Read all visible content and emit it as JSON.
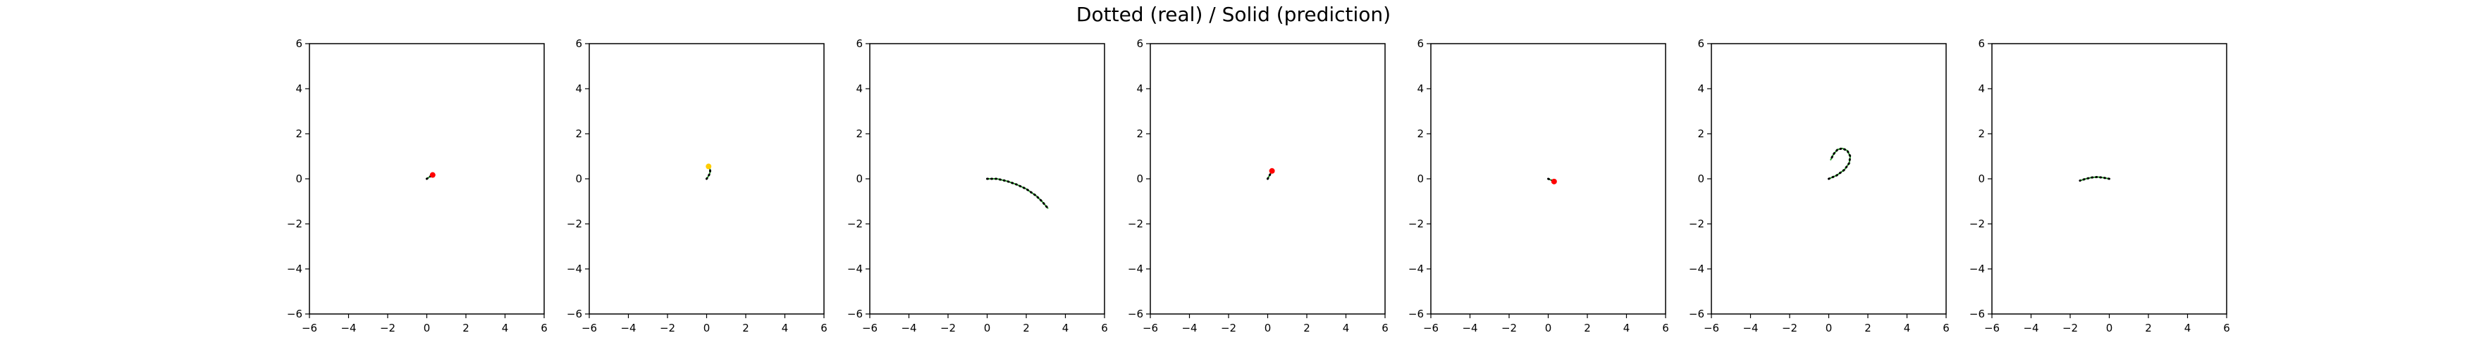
{
  "figure": {
    "title": "Dotted (real) / Solid (prediction)"
  },
  "chart_data": [
    {
      "type": "line",
      "xlim": [
        -6,
        6
      ],
      "ylim": [
        -6,
        6
      ],
      "xticks": [
        -6,
        -4,
        -2,
        0,
        2,
        4,
        6
      ],
      "yticks": [
        -6,
        -4,
        -2,
        0,
        2,
        4,
        6
      ],
      "grid": false,
      "series": [
        {
          "style": "dotted",
          "color": "#000000",
          "x": [
            0.0,
            0.05,
            0.1,
            0.15,
            0.2,
            0.25,
            0.3
          ],
          "y": [
            0.0,
            0.03,
            0.06,
            0.09,
            0.12,
            0.15,
            0.17
          ]
        },
        {
          "style": "solid",
          "color": "#2ca02c",
          "x": [
            0.0,
            0.05,
            0.1,
            0.15,
            0.2,
            0.25,
            0.3
          ],
          "y": [
            0.0,
            0.03,
            0.06,
            0.09,
            0.12,
            0.15,
            0.17
          ]
        }
      ],
      "end_marker": {
        "x": 0.3,
        "y": 0.17,
        "color": "#ff0000"
      }
    },
    {
      "type": "line",
      "xlim": [
        -6,
        6
      ],
      "ylim": [
        -6,
        6
      ],
      "xticks": [
        -6,
        -4,
        -2,
        0,
        2,
        4,
        6
      ],
      "yticks": [
        -6,
        -4,
        -2,
        0,
        2,
        4,
        6
      ],
      "grid": false,
      "series": [
        {
          "style": "dotted",
          "color": "#000000",
          "x": [
            0.0,
            0.08,
            0.14,
            0.18,
            0.18,
            0.14,
            0.1
          ],
          "y": [
            0.0,
            0.1,
            0.2,
            0.3,
            0.4,
            0.5,
            0.55
          ]
        },
        {
          "style": "solid",
          "color": "#2ca02c",
          "x": [
            0.0,
            0.08,
            0.14,
            0.18,
            0.18,
            0.14,
            0.1
          ],
          "y": [
            0.0,
            0.1,
            0.2,
            0.3,
            0.4,
            0.5,
            0.55
          ]
        }
      ],
      "end_marker": {
        "x": 0.1,
        "y": 0.55,
        "color": "#ffcc00"
      }
    },
    {
      "type": "line",
      "xlim": [
        -6,
        6
      ],
      "ylim": [
        -6,
        6
      ],
      "xticks": [
        -6,
        -4,
        -2,
        0,
        2,
        4,
        6
      ],
      "yticks": [
        -6,
        -4,
        -2,
        0,
        2,
        4,
        6
      ],
      "grid": false,
      "series": [
        {
          "style": "dotted",
          "color": "#000000",
          "x": [
            0.0,
            0.5,
            1.0,
            1.5,
            2.0,
            2.5,
            2.8,
            3.1
          ],
          "y": [
            0.0,
            0.0,
            -0.1,
            -0.25,
            -0.45,
            -0.75,
            -1.0,
            -1.3
          ]
        },
        {
          "style": "solid",
          "color": "#2ca02c",
          "x": [
            0.0,
            0.5,
            1.0,
            1.5,
            2.0,
            2.5,
            2.8,
            3.1
          ],
          "y": [
            0.0,
            0.0,
            -0.1,
            -0.25,
            -0.45,
            -0.75,
            -1.0,
            -1.3
          ]
        }
      ],
      "end_marker": null
    },
    {
      "type": "line",
      "xlim": [
        -6,
        6
      ],
      "ylim": [
        -6,
        6
      ],
      "xticks": [
        -6,
        -4,
        -2,
        0,
        2,
        4,
        6
      ],
      "yticks": [
        -6,
        -4,
        -2,
        0,
        2,
        4,
        6
      ],
      "grid": false,
      "series": [
        {
          "style": "dotted",
          "color": "#000000",
          "x": [
            0.0,
            0.05,
            0.1,
            0.15,
            0.2,
            0.22
          ],
          "y": [
            0.0,
            0.08,
            0.16,
            0.24,
            0.3,
            0.35
          ]
        },
        {
          "style": "solid",
          "color": "#2ca02c",
          "x": [
            0.0,
            0.05,
            0.1,
            0.15,
            0.2,
            0.22
          ],
          "y": [
            0.0,
            0.08,
            0.16,
            0.24,
            0.3,
            0.35
          ]
        }
      ],
      "end_marker": {
        "x": 0.22,
        "y": 0.35,
        "color": "#ff0000"
      }
    },
    {
      "type": "line",
      "xlim": [
        -6,
        6
      ],
      "ylim": [
        -6,
        6
      ],
      "xticks": [
        -6,
        -4,
        -2,
        0,
        2,
        4,
        6
      ],
      "yticks": [
        -6,
        -4,
        -2,
        0,
        2,
        4,
        6
      ],
      "grid": false,
      "series": [
        {
          "style": "dotted",
          "color": "#000000",
          "x": [
            0.0,
            0.08,
            0.16,
            0.24,
            0.3
          ],
          "y": [
            0.0,
            -0.03,
            -0.06,
            -0.09,
            -0.12
          ]
        },
        {
          "style": "solid",
          "color": "#2ca02c",
          "x": [
            0.0,
            0.08,
            0.16,
            0.24,
            0.3
          ],
          "y": [
            0.0,
            -0.03,
            -0.06,
            -0.09,
            -0.12
          ]
        }
      ],
      "end_marker": {
        "x": 0.3,
        "y": -0.12,
        "color": "#ff0000"
      }
    },
    {
      "type": "line",
      "xlim": [
        -6,
        6
      ],
      "ylim": [
        -6,
        6
      ],
      "xticks": [
        -6,
        -4,
        -2,
        0,
        2,
        4,
        6
      ],
      "yticks": [
        -6,
        -4,
        -2,
        0,
        2,
        4,
        6
      ],
      "grid": false,
      "series": [
        {
          "style": "dotted",
          "color": "#000000",
          "x": [
            0.0,
            0.4,
            0.8,
            1.05,
            1.1,
            0.95,
            0.7,
            0.45,
            0.25,
            0.1
          ],
          "y": [
            0.0,
            0.15,
            0.4,
            0.7,
            1.0,
            1.25,
            1.35,
            1.3,
            1.1,
            0.85
          ]
        },
        {
          "style": "solid",
          "color": "#2ca02c",
          "x": [
            0.0,
            0.4,
            0.8,
            1.05,
            1.1,
            0.95,
            0.7,
            0.45,
            0.25,
            0.1
          ],
          "y": [
            0.0,
            0.15,
            0.4,
            0.7,
            1.0,
            1.25,
            1.35,
            1.3,
            1.1,
            0.85
          ]
        }
      ],
      "end_marker": null
    },
    {
      "type": "line",
      "xlim": [
        -6,
        6
      ],
      "ylim": [
        -6,
        6
      ],
      "xticks": [
        -6,
        -4,
        -2,
        0,
        2,
        4,
        6
      ],
      "yticks": [
        -6,
        -4,
        -2,
        0,
        2,
        4,
        6
      ],
      "grid": false,
      "series": [
        {
          "style": "dotted",
          "color": "#000000",
          "x": [
            0.0,
            -0.3,
            -0.6,
            -0.9,
            -1.2,
            -1.5
          ],
          "y": [
            0.0,
            0.05,
            0.08,
            0.06,
            0.0,
            -0.08
          ]
        },
        {
          "style": "solid",
          "color": "#2ca02c",
          "x": [
            0.0,
            -0.3,
            -0.6,
            -0.9,
            -1.2,
            -1.5
          ],
          "y": [
            0.0,
            0.05,
            0.08,
            0.06,
            0.0,
            -0.08
          ]
        }
      ],
      "end_marker": null
    }
  ]
}
